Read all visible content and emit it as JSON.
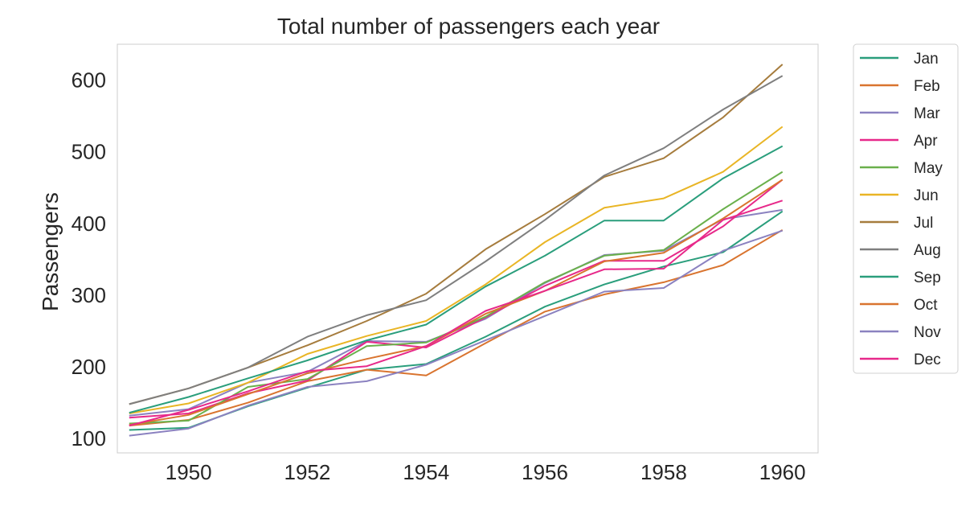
{
  "chart_data": {
    "type": "line",
    "title": "Total number of passengers each year",
    "xlabel": "",
    "ylabel": "Passengers",
    "x": [
      1949,
      1950,
      1951,
      1952,
      1953,
      1954,
      1955,
      1956,
      1957,
      1958,
      1959,
      1960
    ],
    "xticks": [
      1950,
      1952,
      1954,
      1956,
      1958,
      1960
    ],
    "yticks": [
      100,
      200,
      300,
      400,
      500,
      600
    ],
    "xlim": [
      1948.8,
      1960.6
    ],
    "ylim": [
      80,
      650
    ],
    "grid": false,
    "legend_position": "outside-right",
    "series": [
      {
        "name": "Jan",
        "color": "#2a9e7c",
        "values": [
          112,
          115,
          145,
          171,
          196,
          204,
          242,
          284,
          315,
          340,
          360,
          417
        ]
      },
      {
        "name": "Feb",
        "color": "#d9742f",
        "values": [
          118,
          126,
          150,
          180,
          196,
          188,
          233,
          277,
          301,
          318,
          342,
          391
        ]
      },
      {
        "name": "Mar",
        "color": "#8b82c0",
        "values": [
          132,
          141,
          178,
          193,
          236,
          235,
          267,
          317,
          356,
          362,
          406,
          419
        ]
      },
      {
        "name": "Apr",
        "color": "#e7298a",
        "values": [
          129,
          135,
          163,
          181,
          235,
          227,
          269,
          313,
          348,
          348,
          396,
          461
        ]
      },
      {
        "name": "May",
        "color": "#6ab04c",
        "values": [
          121,
          125,
          172,
          183,
          229,
          234,
          270,
          318,
          355,
          363,
          420,
          472
        ]
      },
      {
        "name": "Jun",
        "color": "#e9b525",
        "values": [
          135,
          149,
          178,
          218,
          243,
          264,
          315,
          374,
          422,
          435,
          472,
          535
        ]
      },
      {
        "name": "Jul",
        "color": "#a67c3d",
        "values": [
          148,
          170,
          199,
          230,
          264,
          302,
          364,
          413,
          465,
          491,
          548,
          622
        ]
      },
      {
        "name": "Aug",
        "color": "#7f7f7f",
        "values": [
          148,
          170,
          199,
          242,
          272,
          293,
          347,
          405,
          467,
          505,
          559,
          606
        ]
      },
      {
        "name": "Sep",
        "color": "#2a9e7c",
        "values": [
          136,
          158,
          184,
          209,
          237,
          259,
          312,
          355,
          404,
          404,
          463,
          508
        ]
      },
      {
        "name": "Oct",
        "color": "#d9742f",
        "values": [
          119,
          133,
          162,
          191,
          211,
          229,
          274,
          306,
          347,
          359,
          407,
          461
        ]
      },
      {
        "name": "Nov",
        "color": "#8b82c0",
        "values": [
          104,
          114,
          146,
          172,
          180,
          203,
          237,
          271,
          305,
          310,
          362,
          390
        ]
      },
      {
        "name": "Dec",
        "color": "#e7298a",
        "values": [
          118,
          140,
          166,
          194,
          201,
          229,
          278,
          306,
          336,
          337,
          405,
          432
        ]
      }
    ]
  }
}
